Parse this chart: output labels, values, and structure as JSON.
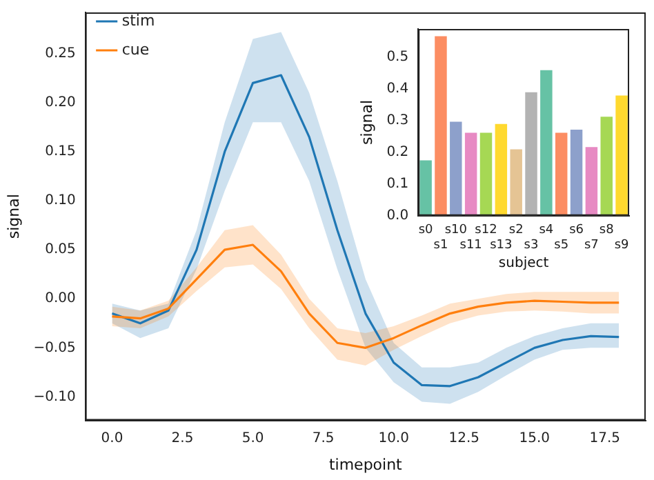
{
  "chart_data": [
    {
      "type": "line",
      "xlabel": "timepoint",
      "ylabel": "signal",
      "x": [
        0,
        1,
        2,
        3,
        4,
        5,
        6,
        7,
        8,
        9,
        10,
        11,
        12,
        13,
        14,
        15,
        16,
        17,
        18
      ],
      "legend": "top left",
      "xlim": [
        -0.95,
        18.95
      ],
      "ylim": [
        -0.124,
        0.292
      ],
      "xticks": [
        {
          "value": 0,
          "label": "0.0"
        },
        {
          "value": 2.5,
          "label": "2.5"
        },
        {
          "value": 5,
          "label": "5.0"
        },
        {
          "value": 7.5,
          "label": "7.5"
        },
        {
          "value": 10,
          "label": "10.0"
        },
        {
          "value": 12.5,
          "label": "12.5"
        },
        {
          "value": 15,
          "label": "15.0"
        },
        {
          "value": 17.5,
          "label": "17.5"
        }
      ],
      "yticks": [
        {
          "value": -0.1,
          "label": "−0.10"
        },
        {
          "value": -0.05,
          "label": "−0.05"
        },
        {
          "value": 0,
          "label": "0.00"
        },
        {
          "value": 0.05,
          "label": "0.05"
        },
        {
          "value": 0.1,
          "label": "0.10"
        },
        {
          "value": 0.15,
          "label": "0.15"
        },
        {
          "value": 0.2,
          "label": "0.20"
        },
        {
          "value": 0.25,
          "label": "0.25"
        }
      ],
      "series": [
        {
          "name": "stim",
          "color": "#1f77b4",
          "values": [
            -0.015,
            -0.025,
            -0.012,
            0.05,
            0.15,
            0.22,
            0.228,
            0.165,
            0.07,
            -0.015,
            -0.065,
            -0.088,
            -0.089,
            -0.08,
            -0.065,
            -0.05,
            -0.042,
            -0.038,
            -0.039
          ],
          "lower": [
            -0.025,
            -0.04,
            -0.03,
            0.03,
            0.11,
            0.18,
            0.18,
            0.12,
            0.03,
            -0.05,
            -0.085,
            -0.105,
            -0.107,
            -0.095,
            -0.078,
            -0.062,
            -0.052,
            -0.05,
            -0.05
          ],
          "upper": [
            -0.005,
            -0.012,
            -0.005,
            0.07,
            0.18,
            0.265,
            0.272,
            0.21,
            0.12,
            0.02,
            -0.045,
            -0.07,
            -0.07,
            -0.065,
            -0.05,
            -0.038,
            -0.03,
            -0.025,
            -0.025
          ]
        },
        {
          "name": "cue",
          "color": "#ff7f0e",
          "values": [
            -0.018,
            -0.02,
            -0.01,
            0.02,
            0.05,
            0.055,
            0.028,
            -0.015,
            -0.045,
            -0.05,
            -0.04,
            -0.027,
            -0.015,
            -0.008,
            -0.004,
            -0.002,
            -0.003,
            -0.004,
            -0.004
          ],
          "lower": [
            -0.028,
            -0.03,
            -0.018,
            0.008,
            0.032,
            0.035,
            0.01,
            -0.03,
            -0.062,
            -0.068,
            -0.052,
            -0.038,
            -0.025,
            -0.017,
            -0.013,
            -0.012,
            -0.013,
            -0.015,
            -0.015
          ],
          "upper": [
            -0.008,
            -0.012,
            -0.002,
            0.032,
            0.07,
            0.075,
            0.045,
            0,
            -0.03,
            -0.035,
            -0.028,
            -0.017,
            -0.005,
            0,
            0.005,
            0.007,
            0.007,
            0.007,
            0.007
          ]
        }
      ]
    },
    {
      "type": "bar",
      "xlabel": "subject",
      "ylabel": "signal",
      "categories": [
        "s0",
        "s1",
        "s10",
        "s11",
        "s12",
        "s13",
        "s2",
        "s3",
        "s4",
        "s5",
        "s6",
        "s7",
        "s8",
        "s9"
      ],
      "values": [
        0.175,
        0.567,
        0.297,
        0.262,
        0.262,
        0.29,
        0.21,
        0.39,
        0.46,
        0.262,
        0.272,
        0.217,
        0.313,
        0.38
      ],
      "colors": [
        "#66c2a5",
        "#fc8d62",
        "#8da0cb",
        "#e78ac3",
        "#a6d854",
        "#ffd92f",
        "#e5c494",
        "#b3b3b3",
        "#66c2a5",
        "#fc8d62",
        "#8da0cb",
        "#e78ac3",
        "#a6d854",
        "#ffd92f"
      ],
      "ylim": [
        0,
        0.59
      ],
      "yticks": [
        {
          "value": 0,
          "label": "0.0"
        },
        {
          "value": 0.1,
          "label": "0.1"
        },
        {
          "value": 0.2,
          "label": "0.2"
        },
        {
          "value": 0.3,
          "label": "0.3"
        },
        {
          "value": 0.4,
          "label": "0.4"
        },
        {
          "value": 0.5,
          "label": "0.5"
        }
      ]
    }
  ]
}
